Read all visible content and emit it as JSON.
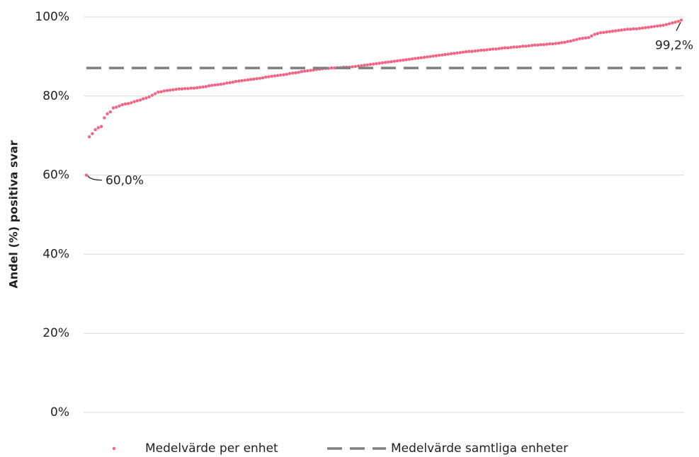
{
  "chart_data": {
    "type": "scatter",
    "y_label": "Andel (%) positiva svar",
    "ylim": [
      0,
      100
    ],
    "yticks": [
      {
        "value": 0,
        "label": "0%"
      },
      {
        "value": 20,
        "label": "20%"
      },
      {
        "value": 40,
        "label": "40%"
      },
      {
        "value": 60,
        "label": "60%"
      },
      {
        "value": 80,
        "label": "80%"
      },
      {
        "value": 100,
        "label": "100%"
      }
    ],
    "grid": true,
    "legend": "bottom",
    "series": [
      {
        "name": "Medelvärde per enhet",
        "color": "#f06484",
        "values": [
          60.0,
          69.7,
          70.5,
          71.5,
          72.0,
          72.3,
          74.5,
          75.5,
          76.0,
          77.0,
          77.2,
          77.5,
          77.8,
          78.0,
          78.1,
          78.3,
          78.6,
          78.8,
          79.0,
          79.3,
          79.5,
          79.8,
          80.2,
          80.6,
          81.0,
          81.1,
          81.3,
          81.4,
          81.5,
          81.6,
          81.7,
          81.8,
          81.8,
          81.9,
          81.9,
          82.0,
          82.0,
          82.1,
          82.2,
          82.3,
          82.4,
          82.6,
          82.7,
          82.8,
          82.9,
          83.0,
          83.1,
          83.3,
          83.4,
          83.5,
          83.7,
          83.8,
          83.9,
          84.0,
          84.1,
          84.2,
          84.3,
          84.4,
          84.5,
          84.6,
          84.8,
          84.9,
          85.0,
          85.1,
          85.2,
          85.3,
          85.4,
          85.5,
          85.7,
          85.8,
          85.9,
          86.0,
          86.2,
          86.3,
          86.4,
          86.5,
          86.6,
          86.7,
          86.8,
          86.9,
          87.0,
          87.0,
          87.1,
          87.1,
          87.2,
          87.2,
          87.3,
          87.3,
          87.3,
          87.4,
          87.5,
          87.6,
          87.7,
          87.8,
          87.9,
          88.0,
          88.1,
          88.2,
          88.3,
          88.4,
          88.5,
          88.6,
          88.7,
          88.8,
          88.9,
          89.0,
          89.1,
          89.2,
          89.3,
          89.4,
          89.5,
          89.6,
          89.7,
          89.8,
          89.9,
          90.0,
          90.1,
          90.2,
          90.3,
          90.4,
          90.5,
          90.6,
          90.7,
          90.8,
          90.9,
          91.0,
          91.1,
          91.2,
          91.3,
          91.3,
          91.4,
          91.5,
          91.6,
          91.6,
          91.7,
          91.8,
          91.9,
          91.9,
          92.0,
          92.1,
          92.2,
          92.2,
          92.3,
          92.4,
          92.4,
          92.5,
          92.6,
          92.6,
          92.7,
          92.8,
          92.9,
          92.9,
          93.0,
          93.0,
          93.1,
          93.2,
          93.2,
          93.3,
          93.4,
          93.5,
          93.6,
          93.8,
          93.9,
          94.1,
          94.3,
          94.5,
          94.6,
          94.7,
          94.8,
          95.2,
          95.6,
          95.8,
          96.0,
          96.1,
          96.2,
          96.3,
          96.4,
          96.5,
          96.6,
          96.7,
          96.8,
          96.9,
          96.9,
          97.0,
          97.0,
          97.1,
          97.2,
          97.3,
          97.4,
          97.5,
          97.6,
          97.7,
          97.8,
          97.9,
          98.1,
          98.3,
          98.5,
          98.7,
          98.9,
          99.2
        ],
        "value_labels": [
          "60,0%",
          null,
          null,
          null,
          null,
          null,
          null,
          null,
          null,
          null,
          null,
          null,
          null,
          null,
          null,
          null,
          null,
          null,
          null,
          null,
          null,
          null,
          null,
          null,
          null,
          null,
          null,
          null,
          null,
          null,
          null,
          null,
          null,
          null,
          null,
          null,
          null,
          null,
          null,
          null,
          null,
          null,
          null,
          null,
          null,
          null,
          null,
          null,
          null,
          null,
          null,
          null,
          null,
          null,
          null,
          null,
          null,
          null,
          null,
          null,
          null,
          null,
          null,
          null,
          null,
          null,
          null,
          null,
          null,
          null,
          null,
          null,
          null,
          null,
          null,
          null,
          null,
          null,
          null,
          null,
          null,
          null,
          null,
          null,
          null,
          null,
          null,
          null,
          null,
          null,
          null,
          null,
          null,
          null,
          null,
          null,
          null,
          null,
          null,
          null,
          null,
          null,
          null,
          null,
          null,
          null,
          null,
          null,
          null,
          null,
          null,
          null,
          null,
          null,
          null,
          null,
          null,
          null,
          null,
          null,
          null,
          null,
          null,
          null,
          null,
          null,
          null,
          null,
          null,
          null,
          null,
          null,
          null,
          null,
          null,
          null,
          null,
          null,
          null,
          null,
          null,
          null,
          null,
          null,
          null,
          null,
          null,
          null,
          null,
          null,
          null,
          null,
          null,
          null,
          null,
          null,
          null,
          null,
          null,
          null,
          null,
          null,
          null,
          null,
          null,
          null,
          null,
          null,
          null,
          null,
          null,
          null,
          null,
          null,
          null,
          null,
          null,
          null,
          null,
          null,
          null,
          null,
          null,
          null,
          null,
          null,
          null,
          null,
          null,
          null,
          null,
          null,
          null,
          null,
          null,
          null,
          null,
          null,
          null,
          "99,2%"
        ]
      },
      {
        "name": "Medelvärde samtliga enheter",
        "color": "#7f7f7f",
        "dashed": true,
        "value": 87.1
      }
    ]
  }
}
